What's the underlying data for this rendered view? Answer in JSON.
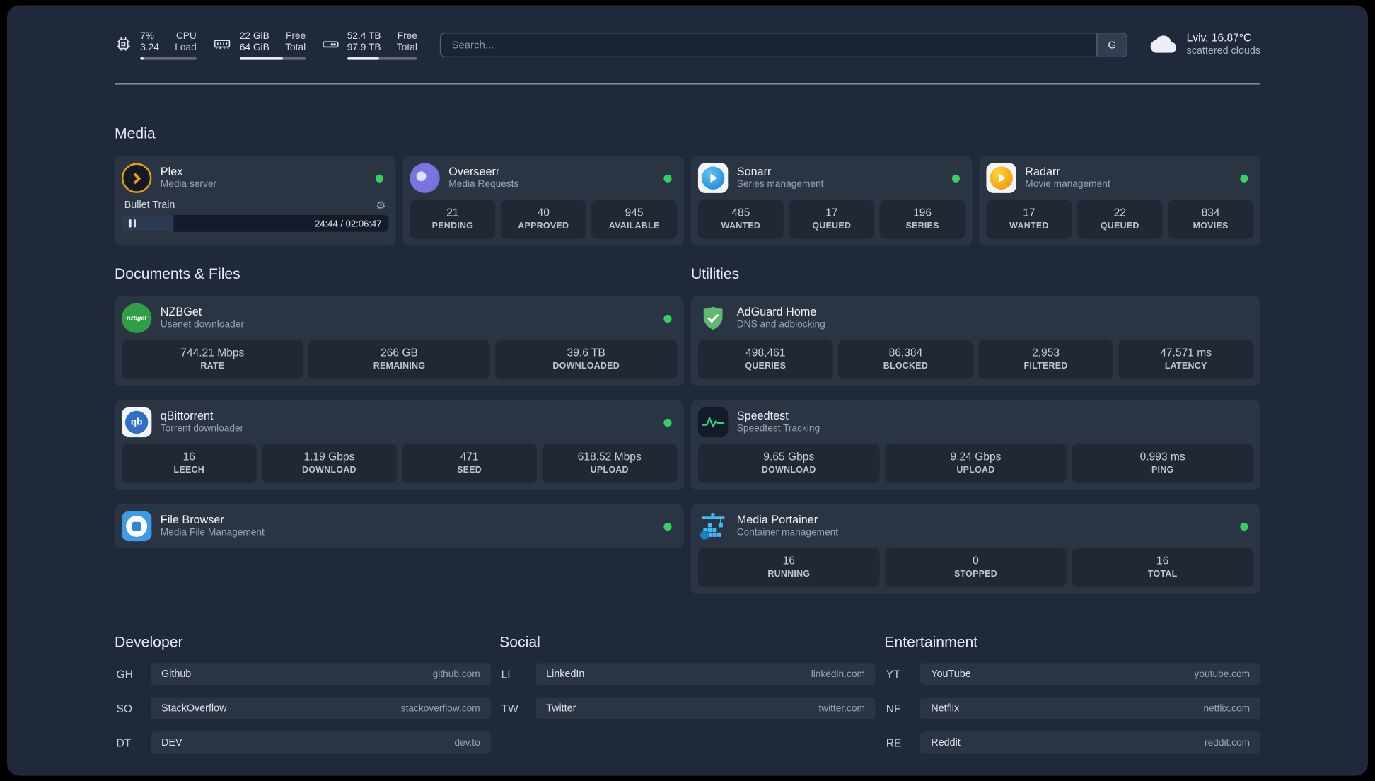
{
  "colors": {
    "status_online": "#35d063",
    "accent_plex": "#e5a00d"
  },
  "topbar": {
    "cpu": {
      "icon": "cpu-icon",
      "value_top": "7%",
      "value_bottom": "3.24",
      "label_top": "CPU",
      "label_bottom": "Load",
      "bar_pct": 7
    },
    "memory": {
      "icon": "memory-icon",
      "value_top": "22 GiB",
      "value_bottom": "64 GiB",
      "label_top": "Free",
      "label_bottom": "Total",
      "bar_pct": 66
    },
    "disk": {
      "icon": "disk-icon",
      "value_top": "52.4 TB",
      "value_bottom": "97.9 TB",
      "label_top": "Free",
      "label_bottom": "Total",
      "bar_pct": 46
    },
    "search": {
      "placeholder": "Search...",
      "provider_button": "G"
    },
    "weather": {
      "icon": "cloud-icon",
      "location": "Lviv, 16.87°C",
      "condition": "scattered clouds"
    }
  },
  "sections": {
    "media": {
      "title": "Media",
      "services": [
        {
          "name": "Plex",
          "desc": "Media server",
          "icon": "plex-icon",
          "status": "online",
          "now_playing": {
            "title": "Bullet Train",
            "time": "24:44 / 02:06:47",
            "progress_pct": 19.5
          }
        },
        {
          "name": "Overseerr",
          "desc": "Media Requests",
          "icon": "overseerr-icon",
          "status": "online",
          "stats": [
            {
              "value": "21",
              "label": "PENDING"
            },
            {
              "value": "40",
              "label": "APPROVED"
            },
            {
              "value": "945",
              "label": "AVAILABLE"
            }
          ]
        },
        {
          "name": "Sonarr",
          "desc": "Series management",
          "icon": "sonarr-icon",
          "status": "online",
          "stats": [
            {
              "value": "485",
              "label": "WANTED"
            },
            {
              "value": "17",
              "label": "QUEUED"
            },
            {
              "value": "196",
              "label": "SERIES"
            }
          ]
        },
        {
          "name": "Radarr",
          "desc": "Movie management",
          "icon": "radarr-icon",
          "status": "online",
          "stats": [
            {
              "value": "17",
              "label": "WANTED"
            },
            {
              "value": "22",
              "label": "QUEUED"
            },
            {
              "value": "834",
              "label": "MOVIES"
            }
          ]
        }
      ]
    },
    "documents": {
      "title": "Documents & Files",
      "services": [
        {
          "name": "NZBGet",
          "desc": "Usenet downloader",
          "icon": "nzbget-icon",
          "status": "online",
          "stats": [
            {
              "value": "744.21 Mbps",
              "label": "RATE"
            },
            {
              "value": "266 GB",
              "label": "REMAINING"
            },
            {
              "value": "39.6 TB",
              "label": "DOWNLOADED"
            }
          ]
        },
        {
          "name": "qBittorrent",
          "desc": "Torrent downloader",
          "icon": "qbittorrent-icon",
          "status": "online",
          "stats": [
            {
              "value": "16",
              "label": "LEECH"
            },
            {
              "value": "1.19 Gbps",
              "label": "DOWNLOAD"
            },
            {
              "value": "471",
              "label": "SEED"
            },
            {
              "value": "618.52 Mbps",
              "label": "UPLOAD"
            }
          ]
        },
        {
          "name": "File Browser",
          "desc": "Media File Management",
          "icon": "filebrowser-icon",
          "status": "online"
        }
      ]
    },
    "utilities": {
      "title": "Utilities",
      "services": [
        {
          "name": "AdGuard Home",
          "desc": "DNS and adblocking",
          "icon": "adguard-icon",
          "stats": [
            {
              "value": "498,461",
              "label": "QUERIES"
            },
            {
              "value": "86,384",
              "label": "BLOCKED"
            },
            {
              "value": "2,953",
              "label": "FILTERED"
            },
            {
              "value": "47.571 ms",
              "label": "LATENCY"
            }
          ]
        },
        {
          "name": "Speedtest",
          "desc": "Speedtest Tracking",
          "icon": "speedtest-icon",
          "stats": [
            {
              "value": "9.65 Gbps",
              "label": "DOWNLOAD"
            },
            {
              "value": "9.24 Gbps",
              "label": "UPLOAD"
            },
            {
              "value": "0.993 ms",
              "label": "PING"
            }
          ]
        },
        {
          "name": "Media Portainer",
          "desc": "Container management",
          "icon": "portainer-icon",
          "status": "online",
          "stats": [
            {
              "value": "16",
              "label": "RUNNING"
            },
            {
              "value": "0",
              "label": "STOPPED"
            },
            {
              "value": "16",
              "label": "TOTAL"
            }
          ]
        }
      ]
    },
    "bookmarks": [
      {
        "title": "Developer",
        "items": [
          {
            "abbr": "GH",
            "name": "Github",
            "url": "github.com"
          },
          {
            "abbr": "SO",
            "name": "StackOverflow",
            "url": "stackoverflow.com"
          },
          {
            "abbr": "DT",
            "name": "DEV",
            "url": "dev.to"
          }
        ]
      },
      {
        "title": "Social",
        "items": [
          {
            "abbr": "LI",
            "name": "LinkedIn",
            "url": "linkedin.com"
          },
          {
            "abbr": "TW",
            "name": "Twitter",
            "url": "twitter.com"
          }
        ]
      },
      {
        "title": "Entertainment",
        "items": [
          {
            "abbr": "YT",
            "name": "YouTube",
            "url": "youtube.com"
          },
          {
            "abbr": "NF",
            "name": "Netflix",
            "url": "netflix.com"
          },
          {
            "abbr": "RE",
            "name": "Reddit",
            "url": "reddit.com"
          }
        ]
      }
    ]
  }
}
